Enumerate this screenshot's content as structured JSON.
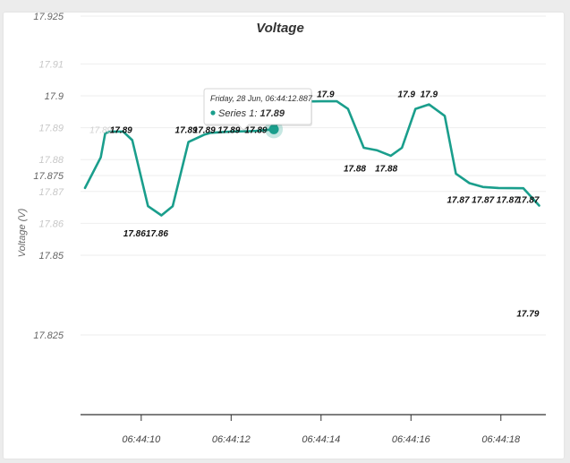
{
  "chart_data": {
    "type": "line",
    "title": "Voltage",
    "ylabel": "Voltage (V)",
    "xlabel": "",
    "ylim": [
      17.8,
      17.925
    ],
    "grid": true,
    "legend": "none",
    "series_color": "#1a9e8c",
    "y_ticks": [
      {
        "value": 17.925,
        "label": "17.925",
        "faint": false
      },
      {
        "value": 17.91,
        "label": "17.91",
        "faint": true
      },
      {
        "value": 17.9,
        "label": "17.9",
        "faint": false
      },
      {
        "value": 17.89,
        "label": "17.89",
        "faint": true
      },
      {
        "value": 17.88,
        "label": "17.88",
        "faint": true
      },
      {
        "value": 17.875,
        "label": "17.875",
        "faint": false
      },
      {
        "value": 17.87,
        "label": "17.87",
        "faint": true
      },
      {
        "value": 17.86,
        "label": "17.86",
        "faint": true
      },
      {
        "value": 17.85,
        "label": "17.85",
        "faint": false
      },
      {
        "value": 17.825,
        "label": "17.825",
        "faint": false
      }
    ],
    "x_ticks": [
      {
        "value": 10.0,
        "label": "06:44:10"
      },
      {
        "value": 12.0,
        "label": "06:44:12"
      },
      {
        "value": 14.0,
        "label": "06:44:14"
      },
      {
        "value": 16.0,
        "label": "06:44:16"
      },
      {
        "value": 18.0,
        "label": "06:44:18"
      }
    ],
    "xlim": [
      8.65,
      19.0
    ],
    "series": [
      {
        "points": [
          {
            "x": 8.75,
            "y": 17.8711
          },
          {
            "x": 9.1,
            "y": 17.8807
          },
          {
            "x": 9.2,
            "y": 17.8883
          },
          {
            "x": 9.32,
            "y": 17.8888
          },
          {
            "x": 9.6,
            "y": 17.8888
          },
          {
            "x": 9.8,
            "y": 17.8861
          },
          {
            "x": 10.15,
            "y": 17.8654
          },
          {
            "x": 10.45,
            "y": 17.8625
          },
          {
            "x": 10.7,
            "y": 17.8654
          },
          {
            "x": 11.05,
            "y": 17.8855
          },
          {
            "x": 11.4,
            "y": 17.8878
          },
          {
            "x": 11.55,
            "y": 17.8884
          },
          {
            "x": 12.0,
            "y": 17.8888
          },
          {
            "x": 12.4,
            "y": 17.8889
          },
          {
            "x": 12.55,
            "y": 17.889
          },
          {
            "x": 12.95,
            "y": 17.8895
          },
          {
            "x": 13.3,
            "y": 17.8979
          },
          {
            "x": 13.5,
            "y": 17.8982
          },
          {
            "x": 14.0,
            "y": 17.8983
          },
          {
            "x": 14.35,
            "y": 17.8983
          },
          {
            "x": 14.6,
            "y": 17.8959
          },
          {
            "x": 14.95,
            "y": 17.8837
          },
          {
            "x": 15.25,
            "y": 17.8829
          },
          {
            "x": 15.55,
            "y": 17.8812
          },
          {
            "x": 15.8,
            "y": 17.8837
          },
          {
            "x": 16.1,
            "y": 17.8959
          },
          {
            "x": 16.4,
            "y": 17.8973
          },
          {
            "x": 16.75,
            "y": 17.8937
          },
          {
            "x": 17.0,
            "y": 17.8756
          },
          {
            "x": 17.3,
            "y": 17.8726
          },
          {
            "x": 17.6,
            "y": 17.8714
          },
          {
            "x": 17.95,
            "y": 17.8711
          },
          {
            "x": 18.5,
            "y": 17.871
          },
          {
            "x": 18.85,
            "y": 17.8656
          }
        ]
      }
    ],
    "data_labels": [
      {
        "x": 9.1,
        "y": 17.8883,
        "text": "17.89",
        "faint": true
      },
      {
        "x": 9.55,
        "y": 17.8883,
        "text": "17.89",
        "faint": false
      },
      {
        "x": 9.85,
        "y": 17.8559,
        "text": "17.86",
        "faint": false
      },
      {
        "x": 10.35,
        "y": 17.8559,
        "text": "17.86",
        "faint": false
      },
      {
        "x": 11.0,
        "y": 17.8883,
        "text": "17.89",
        "faint": false
      },
      {
        "x": 11.4,
        "y": 17.8883,
        "text": "17.89",
        "faint": false
      },
      {
        "x": 11.95,
        "y": 17.8883,
        "text": "17.89",
        "faint": false
      },
      {
        "x": 12.55,
        "y": 17.8883,
        "text": "17.89",
        "faint": false
      },
      {
        "x": 14.1,
        "y": 17.8996,
        "text": "17.9",
        "faint": false
      },
      {
        "x": 14.75,
        "y": 17.8763,
        "text": "17.88",
        "faint": false
      },
      {
        "x": 15.45,
        "y": 17.8763,
        "text": "17.88",
        "faint": false
      },
      {
        "x": 15.9,
        "y": 17.8996,
        "text": "17.9",
        "faint": false
      },
      {
        "x": 16.4,
        "y": 17.8996,
        "text": "17.9",
        "faint": false
      },
      {
        "x": 17.05,
        "y": 17.8665,
        "text": "17.87",
        "faint": false
      },
      {
        "x": 17.6,
        "y": 17.8665,
        "text": "17.87",
        "faint": false
      },
      {
        "x": 18.15,
        "y": 17.8665,
        "text": "17.87",
        "faint": false
      },
      {
        "x": 18.6,
        "y": 17.8665,
        "text": "17.87",
        "faint": false
      },
      {
        "x": 18.6,
        "y": 17.8307,
        "text": "17.79",
        "faint": false
      }
    ],
    "tooltip": {
      "header": "Friday, 28 Jun, 06:44:12.887",
      "series_name": "Series 1",
      "value": "17.89",
      "point": {
        "x": 12.95,
        "y": 17.8895
      }
    }
  }
}
